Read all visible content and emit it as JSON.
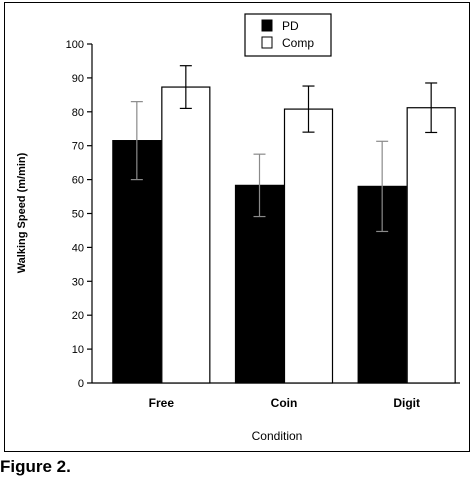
{
  "figure": {
    "caption": "Figure 2."
  },
  "chart_data": {
    "type": "bar",
    "title": "",
    "xlabel": "Condition",
    "ylabel": "Walking Speed (m/min)",
    "ylim": [
      0,
      100
    ],
    "yticks": [
      0,
      10,
      20,
      30,
      40,
      50,
      60,
      70,
      80,
      90,
      100
    ],
    "grid": false,
    "legend_position": "top-center",
    "categories": [
      "Free",
      "Coin",
      "Digit"
    ],
    "series": [
      {
        "name": "PD",
        "color": "#000000",
        "values": [
          71.5,
          58.3,
          58.0
        ],
        "error": [
          11.5,
          9.2,
          13.3
        ]
      },
      {
        "name": "Comp",
        "color": "#ffffff",
        "values": [
          87.3,
          80.8,
          81.2
        ],
        "error": [
          6.3,
          6.8,
          7.3
        ]
      }
    ]
  }
}
